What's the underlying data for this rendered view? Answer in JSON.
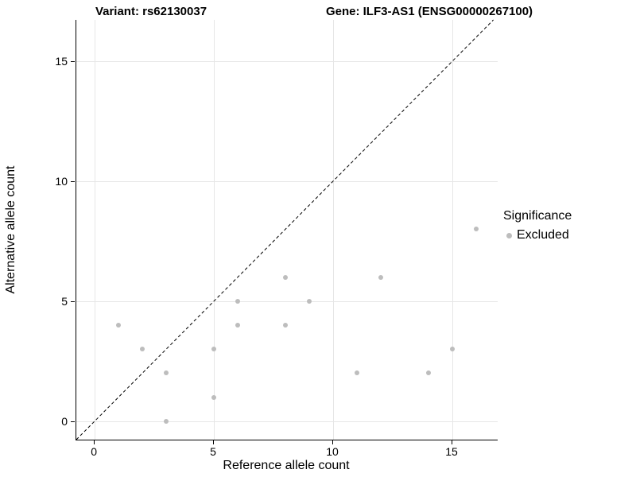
{
  "titles": {
    "variant": "Variant: rs62130037",
    "gene": "Gene: ILF3-AS1 (ENSG00000267100)"
  },
  "chart_data": {
    "type": "scatter",
    "title_left": "Variant: rs62130037",
    "title_right": "Gene: ILF3-AS1 (ENSG00000267100)",
    "xlabel": "Reference allele count",
    "ylabel": "Alternative allele count",
    "xlim": [
      -0.77,
      16.9
    ],
    "ylim": [
      -0.77,
      16.72
    ],
    "xticks": [
      0,
      5,
      10,
      15
    ],
    "yticks": [
      0,
      5,
      10,
      15
    ],
    "grid": true,
    "grid_color": "#e6e6e6",
    "identity_line": {
      "slope": 1,
      "intercept": 0,
      "style": "dashed",
      "color": "#000000"
    },
    "points": [
      [
        1,
        4
      ],
      [
        2,
        3
      ],
      [
        3,
        2
      ],
      [
        3,
        0
      ],
      [
        5,
        3
      ],
      [
        5,
        1
      ],
      [
        6,
        5
      ],
      [
        6,
        4
      ],
      [
        8,
        6
      ],
      [
        8,
        4
      ],
      [
        9,
        5
      ],
      [
        11,
        2
      ],
      [
        12,
        6
      ],
      [
        14,
        2
      ],
      [
        15,
        3
      ],
      [
        16,
        8
      ]
    ],
    "point_color": "#bdbdbd",
    "legend": {
      "title": "Significance",
      "entries": [
        {
          "label": "Excluded",
          "color": "#bdbdbd"
        }
      ]
    }
  }
}
